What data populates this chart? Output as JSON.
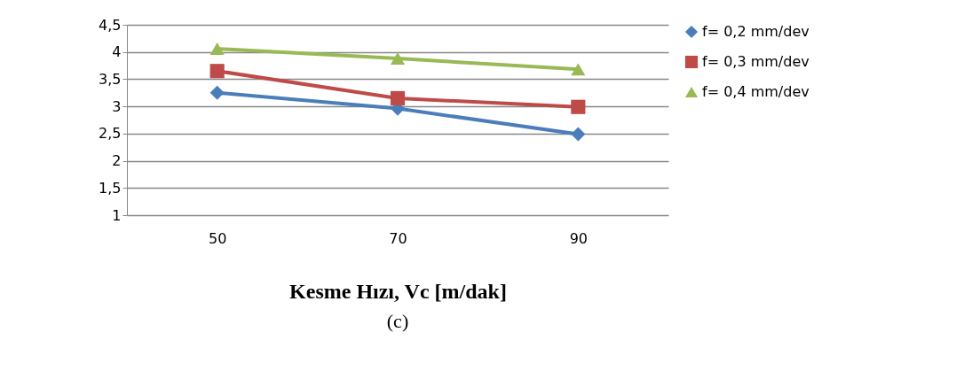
{
  "chart_data": {
    "type": "line",
    "xlabel": "Kesme Hızı, Vc [m/dak]",
    "categories": [
      "50",
      "70",
      "90"
    ],
    "series": [
      {
        "name": "f= 0,2 mm/dev",
        "color": "#4a7ebb",
        "marker": "diamond",
        "values": [
          3.25,
          2.96,
          2.49
        ]
      },
      {
        "name": "f= 0,3 mm/dev",
        "color": "#be4b48",
        "marker": "square",
        "values": [
          3.65,
          3.15,
          2.99
        ]
      },
      {
        "name": "f= 0,4 mm/dev",
        "color": "#98b954",
        "marker": "triangle",
        "values": [
          4.06,
          3.88,
          3.68
        ]
      }
    ],
    "ylim": [
      1,
      4.5
    ],
    "yticks": [
      {
        "value": 1,
        "label": "1"
      },
      {
        "value": 1.5,
        "label": "1,5"
      },
      {
        "value": 2,
        "label": "2"
      },
      {
        "value": 2.5,
        "label": "2,5"
      },
      {
        "value": 3,
        "label": "3"
      },
      {
        "value": 3.5,
        "label": "3,5"
      },
      {
        "value": 4,
        "label": "4"
      },
      {
        "value": 4.5,
        "label": "4,5"
      }
    ],
    "grid": "y",
    "legend": "right",
    "line_style": "solid",
    "annotations": [
      "(c)"
    ]
  }
}
